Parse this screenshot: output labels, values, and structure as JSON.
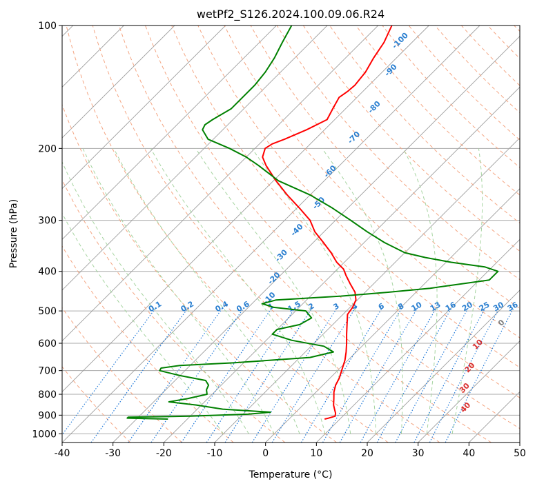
{
  "chart_data": {
    "type": "line",
    "title": "wetPf2_S126.2024.100.09.06.R24",
    "xlabel": "Temperature (°C)",
    "ylabel": "Pressure (hPa)",
    "xlim": [
      -40,
      50
    ],
    "ylim": [
      1050,
      100
    ],
    "y_scale": "log",
    "skew": true,
    "grid": true,
    "x_ticks": [
      -40,
      -30,
      -20,
      -10,
      0,
      10,
      20,
      30,
      40,
      50
    ],
    "y_ticks": [
      100,
      200,
      300,
      400,
      500,
      600,
      700,
      800,
      900,
      1000
    ],
    "series": [
      {
        "role": "temperature",
        "color": "#ff0000",
        "pressure": [
          920,
          915,
          905,
          890,
          870,
          850,
          820,
          790,
          760,
          730,
          700,
          660,
          630,
          600,
          570,
          540,
          510,
          490,
          470,
          450,
          430,
          410,
          395,
          380,
          360,
          340,
          320,
          300,
          280,
          260,
          240,
          220,
          210,
          200,
          195,
          190,
          180,
          170,
          160,
          150,
          145,
          140,
          130,
          120,
          110,
          100
        ],
        "temperature": [
          7.0,
          7.6,
          8.5,
          8.0,
          7.0,
          6.0,
          4.8,
          3.5,
          2.5,
          1.8,
          0.8,
          -0.6,
          -2.0,
          -3.6,
          -5.4,
          -7.2,
          -9.1,
          -9.5,
          -10.3,
          -12.0,
          -14.5,
          -17.0,
          -18.8,
          -21.5,
          -24.5,
          -28.0,
          -31.8,
          -35.0,
          -39.5,
          -44.5,
          -49.5,
          -54.5,
          -56.8,
          -58.0,
          -57.5,
          -56.0,
          -53.5,
          -51.5,
          -52.5,
          -53.5,
          -53.0,
          -52.8,
          -53.3,
          -54.5,
          -55.5,
          -57.3
        ]
      },
      {
        "role": "dewpoint",
        "color": "#008000",
        "pressure": [
          920,
          915,
          910,
          905,
          895,
          885,
          870,
          850,
          835,
          820,
          800,
          780,
          760,
          740,
          720,
          700,
          690,
          680,
          670,
          650,
          630,
          610,
          590,
          570,
          555,
          540,
          520,
          500,
          490,
          480,
          470,
          460,
          450,
          440,
          420,
          400,
          390,
          380,
          370,
          360,
          340,
          320,
          300,
          280,
          260,
          240,
          220,
          210,
          200,
          190,
          180,
          175,
          170,
          160,
          150,
          140,
          130,
          120,
          110,
          100
        ],
        "temperature": [
          -23.8,
          -32.0,
          -32.0,
          -20.0,
          -9.0,
          -5.0,
          -15.0,
          -21.0,
          -27.0,
          -24.0,
          -21.0,
          -22.0,
          -22.5,
          -24.0,
          -30.0,
          -35.0,
          -35.2,
          -32.0,
          -22.0,
          -8.0,
          -4.5,
          -7.5,
          -15.0,
          -20.0,
          -20.0,
          -16.5,
          -15.5,
          -18.0,
          -25.0,
          -28.0,
          -26.0,
          -14.0,
          -5.5,
          2.0,
          12.0,
          12.0,
          8.5,
          1.0,
          -5.0,
          -10.0,
          -16.0,
          -21.5,
          -27.0,
          -33.0,
          -40.0,
          -49.0,
          -56.0,
          -60.0,
          -65.0,
          -71.0,
          -74.0,
          -74.5,
          -74.0,
          -72.5,
          -72.5,
          -72.5,
          -73.0,
          -74.0,
          -75.5,
          -77.0
        ]
      }
    ],
    "dry_adiabats_theta_C": [
      -30,
      -20,
      -10,
      0,
      10,
      20,
      30,
      40,
      50,
      60,
      70,
      80,
      90,
      100,
      110,
      120,
      130,
      140,
      150,
      160,
      170,
      180,
      190,
      200
    ],
    "moist_adiabats_C": [
      -10,
      -5,
      0,
      5,
      10,
      15,
      20,
      25,
      30,
      35
    ],
    "mixing_ratio_lines_gkg": [
      "0.1",
      "0.2",
      "0.4",
      "0.6",
      "1",
      "1.5",
      "2",
      "3",
      "4",
      "6",
      "8",
      "10",
      "13",
      "16",
      "20",
      "25",
      "30",
      "36"
    ],
    "height_labels_m": {
      "blue": [
        "-100",
        "-90",
        "-80",
        "-70",
        "-60",
        "-50",
        "-40",
        "-30",
        "-20",
        "-10"
      ],
      "gray": [
        "0"
      ],
      "red": [
        "10",
        "20",
        "30",
        "40"
      ]
    },
    "colors": {
      "temperature": "#ff0000",
      "dewpoint": "#008000",
      "dry_adiabat": "#f4a582",
      "moist_adiabat": "#a6d4a0",
      "mixing_ratio": "#1f78d8",
      "isotherm": "#9e9e9e",
      "grid": "#aaaaaa",
      "label_blue": "#2a7fd0",
      "label_red": "#d93030",
      "label_gray": "#808080"
    }
  }
}
